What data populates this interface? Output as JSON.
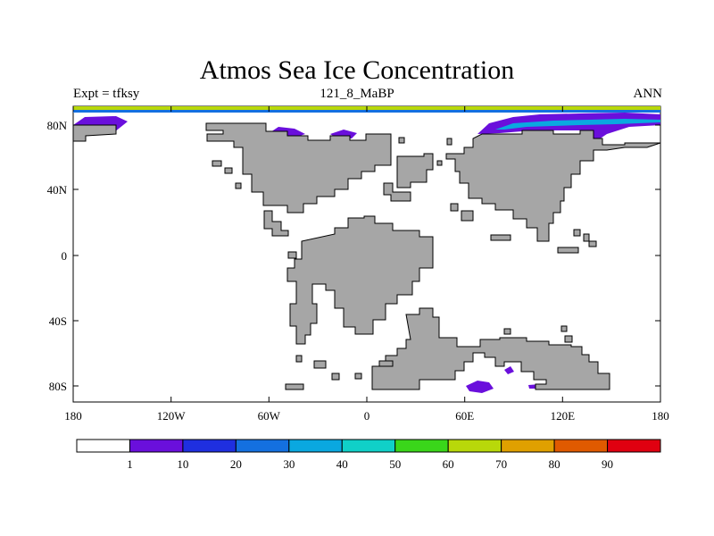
{
  "title": "Atmos Sea Ice Concentration",
  "subtitle_left": "Expt = tfksy",
  "subtitle_center": "121_8_MaBP",
  "subtitle_right": "ANN",
  "map": {
    "x_ticks": [
      "180",
      "120W",
      "60W",
      "0",
      "60E",
      "120E",
      "180"
    ],
    "y_ticks": [
      "80N",
      "40N",
      "0",
      "40S",
      "80S"
    ],
    "land_color": "#a6a6a6",
    "ocean_color": "#ffffff"
  },
  "colorbar": {
    "labels": [
      "1",
      "10",
      "20",
      "30",
      "40",
      "50",
      "60",
      "70",
      "80",
      "90"
    ],
    "colors": [
      "#ffffff",
      "#6a0fdc",
      "#1f2fe0",
      "#1470e0",
      "#0aa8e0",
      "#10d0c8",
      "#3ad61a",
      "#b8d80a",
      "#e0a000",
      "#e05a00",
      "#e00010"
    ]
  }
}
